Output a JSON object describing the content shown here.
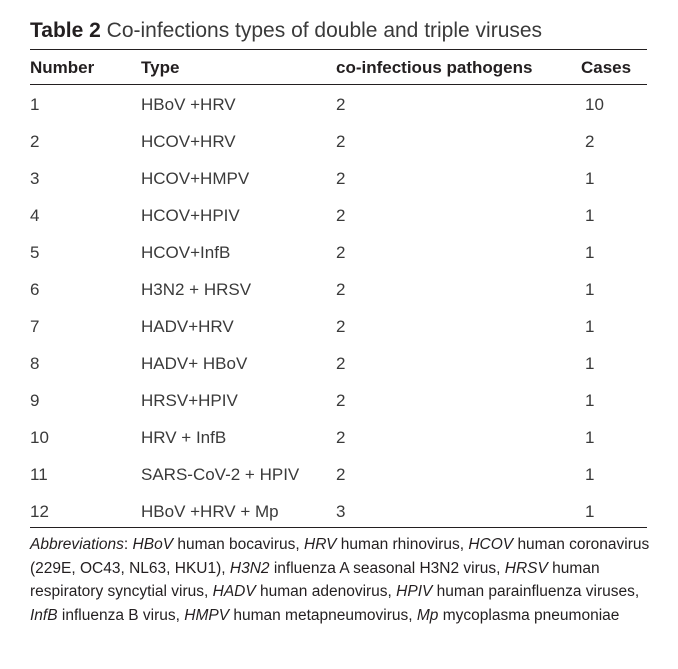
{
  "caption": {
    "label": "Table 2",
    "title": "Co-infections types of double and triple viruses"
  },
  "table": {
    "headers": [
      "Number",
      "Type",
      "co-infectious pathogens",
      "Cases"
    ],
    "rows": [
      [
        "1",
        "HBoV +HRV",
        "2",
        "10"
      ],
      [
        "2",
        "HCOV+HRV",
        "2",
        "2"
      ],
      [
        "3",
        "HCOV+HMPV",
        "2",
        "1"
      ],
      [
        "4",
        "HCOV+HPIV",
        "2",
        "1"
      ],
      [
        "5",
        "HCOV+InfB",
        "2",
        "1"
      ],
      [
        "6",
        "H3N2 + HRSV",
        "2",
        "1"
      ],
      [
        "7",
        "HADV+HRV",
        "2",
        "1"
      ],
      [
        "8",
        "HADV+ HBoV",
        "2",
        "1"
      ],
      [
        "9",
        "HRSV+HPIV",
        "2",
        "1"
      ],
      [
        "10",
        "HRV + InfB",
        "2",
        "1"
      ],
      [
        "11",
        "SARS-CoV-2 + HPIV",
        "2",
        "1"
      ],
      [
        "12",
        "HBoV +HRV + Mp",
        "3",
        "1"
      ]
    ]
  },
  "footnote": {
    "lead": "Abbreviations",
    "items": [
      {
        "abbr": "HBoV",
        "desc": "human bocavirus"
      },
      {
        "abbr": "HRV",
        "desc": "human rhinovirus"
      },
      {
        "abbr": "HCOV",
        "desc": "human coronavirus (229E, OC43, NL63, HKU1)"
      },
      {
        "abbr": "H3N2",
        "desc": "influenza A seasonal H3N2 virus"
      },
      {
        "abbr": "HRSV",
        "desc": "human respiratory syncytial virus"
      },
      {
        "abbr": "HADV",
        "desc": "human adenovirus"
      },
      {
        "abbr": "HPIV",
        "desc": "human parainfluenza viruses"
      },
      {
        "abbr": "InfB",
        "desc": "influenza B virus"
      },
      {
        "abbr": "HMPV",
        "desc": "human metapneumovirus"
      },
      {
        "abbr": "Mp",
        "desc": "mycoplasma pneumoniae"
      }
    ]
  }
}
